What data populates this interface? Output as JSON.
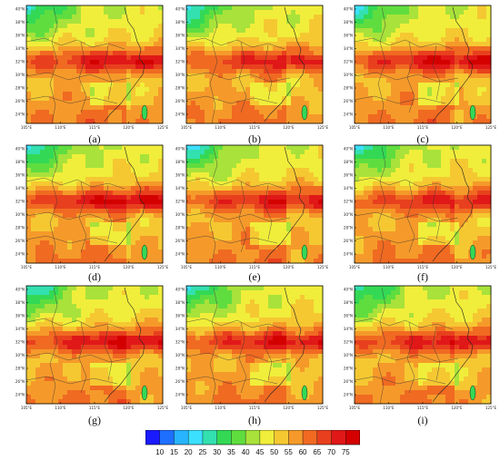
{
  "panels": [
    {
      "label": "(a)",
      "intensity": 1.0
    },
    {
      "label": "(b)",
      "intensity": 0.92
    },
    {
      "label": "(c)",
      "intensity": 1.08
    },
    {
      "label": "(d)",
      "intensity": 1.1
    },
    {
      "label": "(e)",
      "intensity": 0.95
    },
    {
      "label": "(f)",
      "intensity": 0.9
    },
    {
      "label": "(g)",
      "intensity": 1.06
    },
    {
      "label": "(h)",
      "intensity": 1.0
    },
    {
      "label": "(i)",
      "intensity": 0.97
    }
  ],
  "lat_ticks": [
    "24°N",
    "26°N",
    "28°N",
    "30°N",
    "32°N",
    "34°N",
    "36°N",
    "38°N",
    "40°N"
  ],
  "lon_ticks": [
    "105°E",
    "110°E",
    "115°E",
    "120°E",
    "125°E"
  ],
  "colorbar": {
    "labels": [
      "10",
      "15",
      "20",
      "25",
      "30",
      "35",
      "40",
      "45",
      "50",
      "55",
      "60",
      "65",
      "70",
      "75"
    ],
    "colors": [
      "#1a1aff",
      "#1f6fff",
      "#28b4ff",
      "#3ce0ff",
      "#33e0b0",
      "#33d955",
      "#5fdd3f",
      "#a8e23a",
      "#f0ee3a",
      "#f5c832",
      "#f59a2a",
      "#f06a22",
      "#e8401e",
      "#e01818",
      "#d40000"
    ]
  }
}
